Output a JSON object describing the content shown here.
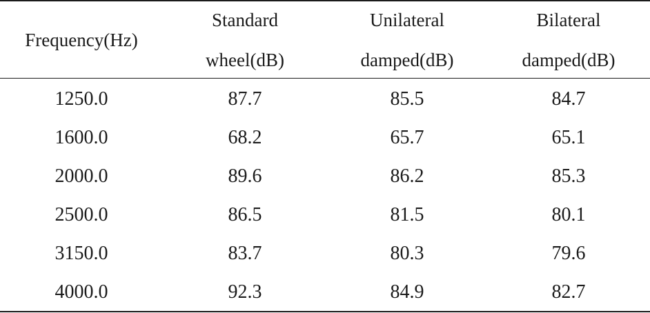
{
  "chart_data": {
    "type": "table",
    "columns": [
      {
        "lines": [
          "Frequency(Hz)"
        ]
      },
      {
        "lines": [
          "Standard",
          "wheel(dB)"
        ]
      },
      {
        "lines": [
          "Unilateral",
          "damped(dB)"
        ]
      },
      {
        "lines": [
          "Bilateral",
          "damped(dB)"
        ]
      }
    ],
    "rows": [
      [
        "1250.0",
        "87.7",
        "85.5",
        "84.7"
      ],
      [
        "1600.0",
        "68.2",
        "65.7",
        "65.1"
      ],
      [
        "2000.0",
        "89.6",
        "86.2",
        "85.3"
      ],
      [
        "2500.0",
        "86.5",
        "81.5",
        "80.1"
      ],
      [
        "3150.0",
        "83.7",
        "80.3",
        "79.6"
      ],
      [
        "4000.0",
        "92.3",
        "84.9",
        "82.7"
      ]
    ]
  }
}
